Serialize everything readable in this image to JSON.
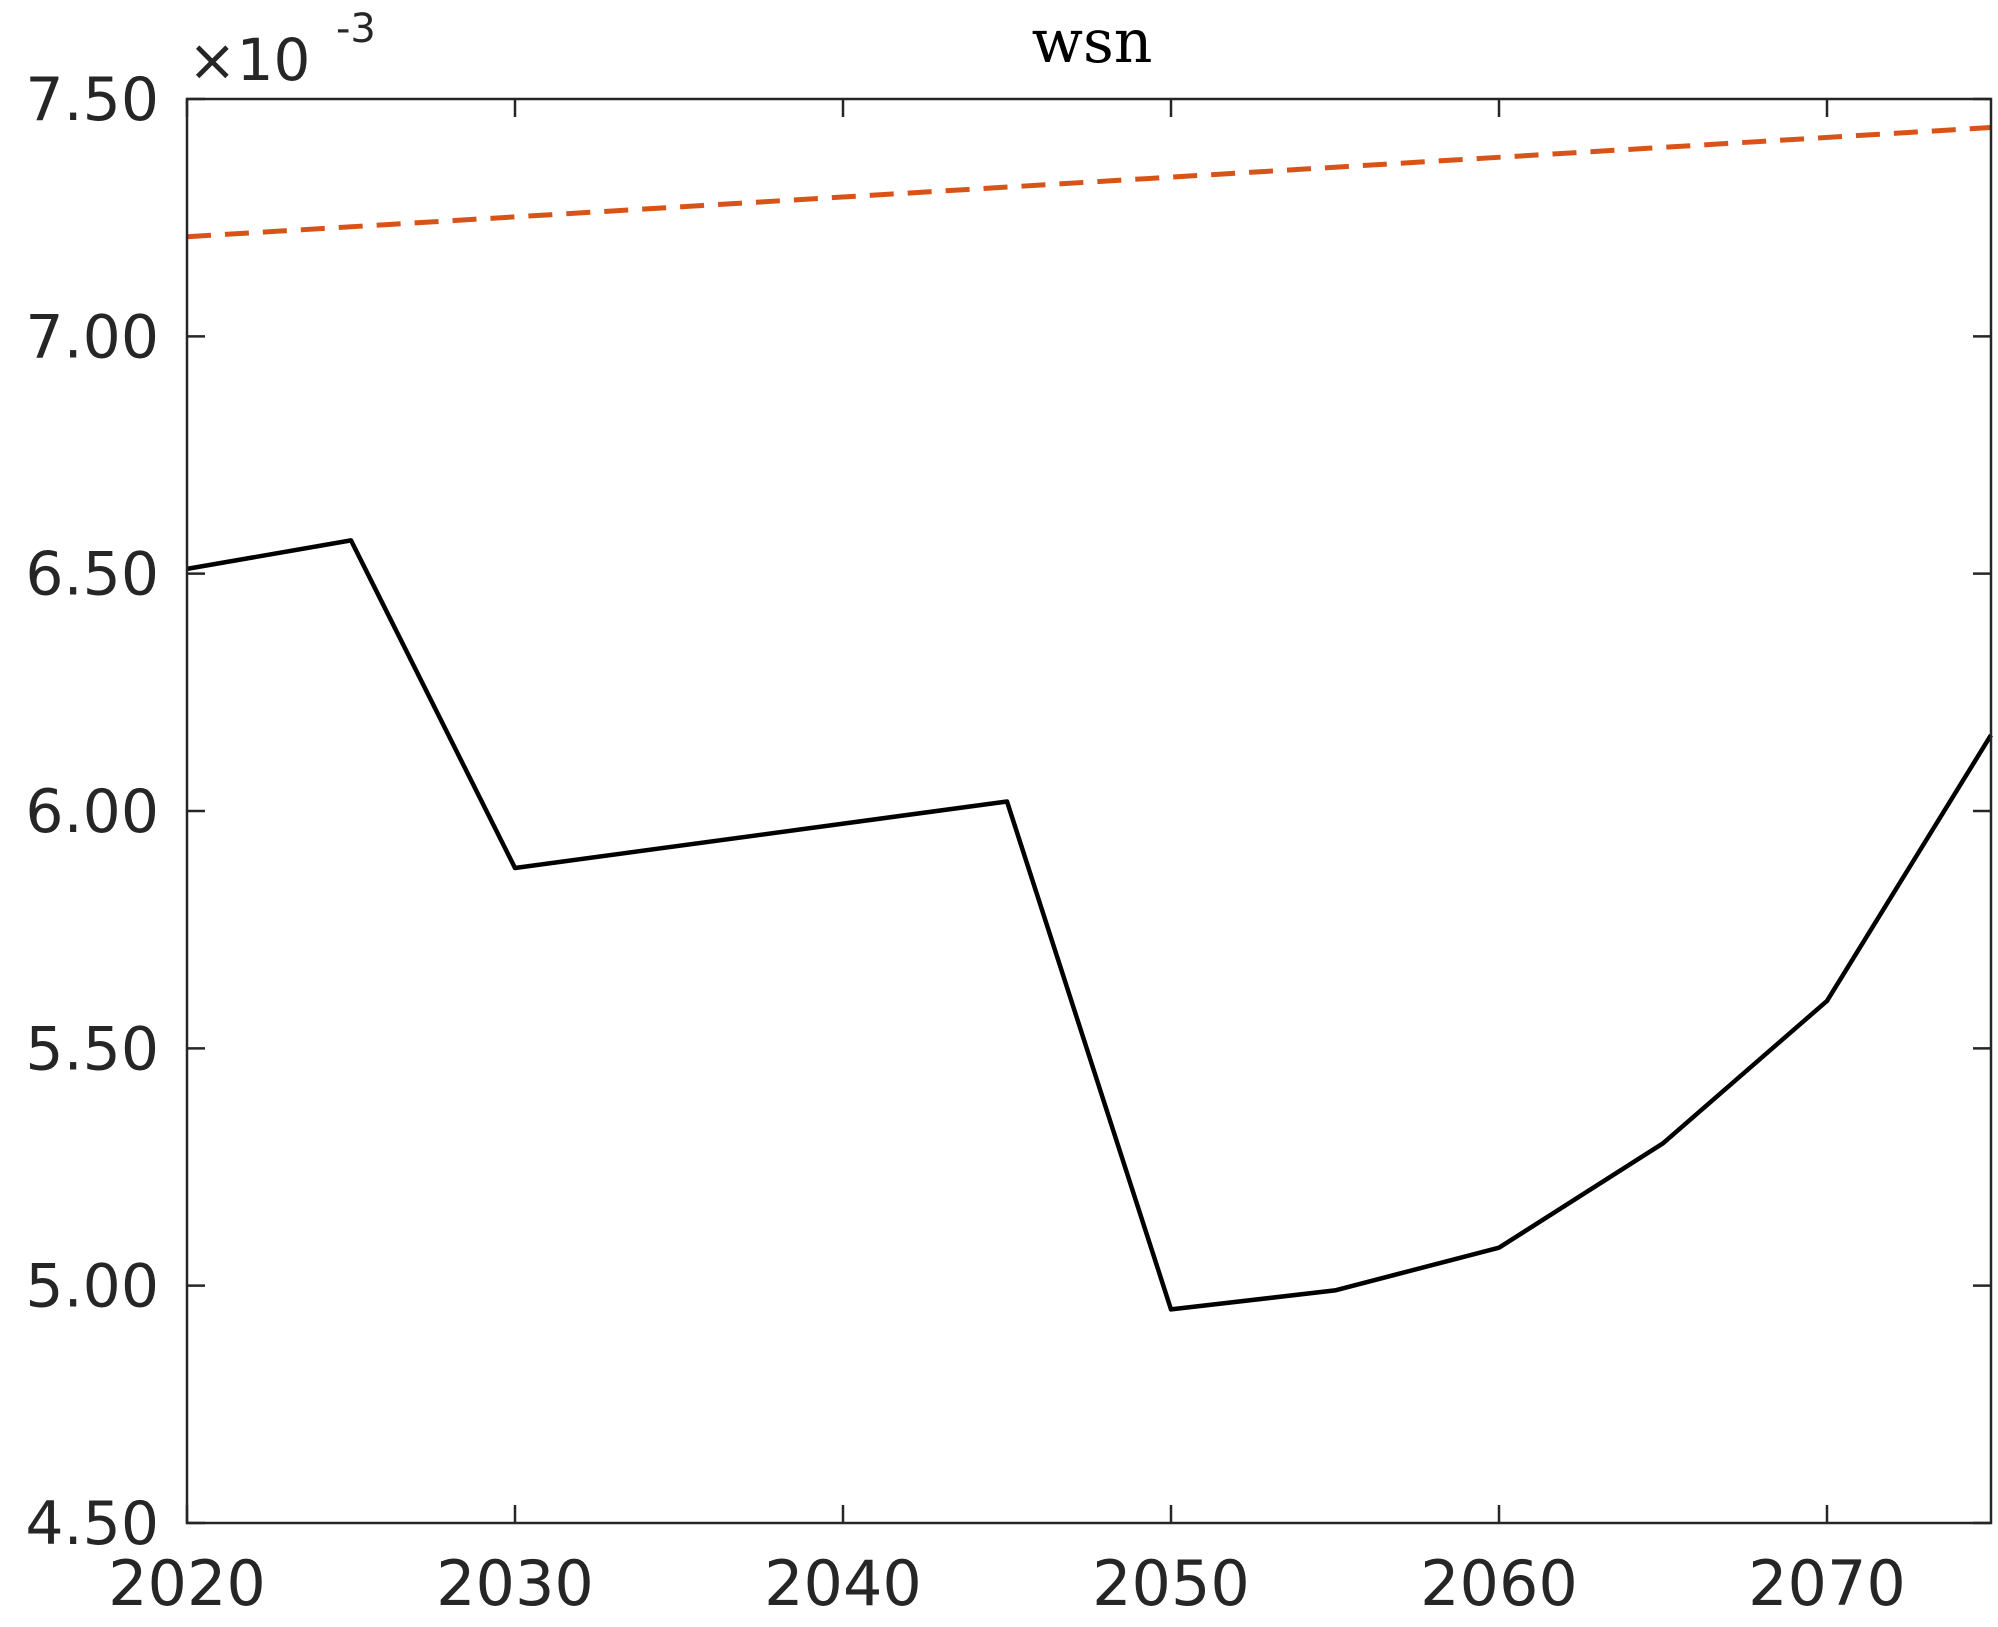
{
  "chart_data": {
    "type": "line",
    "title": "wsn",
    "xlabel": "",
    "ylabel": "",
    "xlim": [
      2020,
      2075
    ],
    "ylim": [
      4.5,
      7.5
    ],
    "y_multiplier": {
      "base": "×10",
      "exponent": "-3"
    },
    "x_ticks": [
      2020,
      2030,
      2040,
      2050,
      2060,
      2070
    ],
    "x_tick_labels": [
      "2020",
      "2030",
      "2040",
      "2050",
      "2060",
      "2070"
    ],
    "y_ticks": [
      4.5,
      5.0,
      5.5,
      6.0,
      6.5,
      7.0,
      7.5
    ],
    "y_tick_labels": [
      "4.50",
      "5.00",
      "5.50",
      "6.00",
      "6.50",
      "7.00",
      "7.50"
    ],
    "grid": false,
    "legend": "none",
    "series": [
      {
        "color": "#000000",
        "line_style": "solid",
        "x": [
          2020,
          2025,
          2030,
          2045,
          2050,
          2055,
          2060,
          2065,
          2070,
          2075
        ],
        "y": [
          6.51,
          6.57,
          5.88,
          6.02,
          4.95,
          4.99,
          5.08,
          5.3,
          5.6,
          6.16
        ]
      },
      {
        "color": "#D95319",
        "line_style": "dashed",
        "x": [
          2020,
          2075
        ],
        "y": [
          7.21,
          7.44
        ]
      }
    ]
  }
}
